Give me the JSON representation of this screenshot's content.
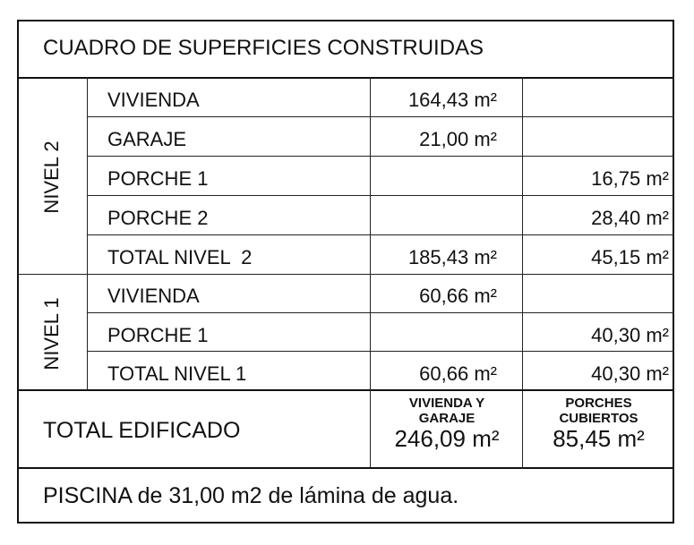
{
  "title": "CUADRO DE SUPERFICIES CONSTRUIDAS",
  "levels": [
    {
      "name": "NIVEL 2",
      "rows": [
        {
          "label": "VIVIENDA",
          "col1": "164,43 m²",
          "col2": ""
        },
        {
          "label": "GARAJE",
          "col1": "21,00 m²",
          "col2": ""
        },
        {
          "label": "PORCHE 1",
          "col1": "",
          "col2": "16,75 m²"
        },
        {
          "label": "PORCHE 2",
          "col1": "",
          "col2": "28,40 m²"
        },
        {
          "label": "TOTAL NIVEL  2",
          "col1": "185,43 m²",
          "col2": "45,15 m²"
        }
      ]
    },
    {
      "name": "NIVEL 1",
      "rows": [
        {
          "label": "VIVIENDA",
          "col1": "60,66 m²",
          "col2": ""
        },
        {
          "label": "PORCHE 1",
          "col1": "",
          "col2": "40,30 m²"
        },
        {
          "label": "TOTAL NIVEL 1",
          "col1": "60,66 m²",
          "col2": "40,30 m²"
        }
      ]
    }
  ],
  "total": {
    "label": "TOTAL EDIFICADO",
    "col1_caption_1": "VIVIENDA Y",
    "col1_caption_2": "GARAJE",
    "col1_value": "246,09 m²",
    "col2_caption_1": "PORCHES",
    "col2_caption_2": "CUBIERTOS",
    "col2_value": "85,45 m²"
  },
  "note": "PISCINA de 31,00 m2 de lámina de agua."
}
